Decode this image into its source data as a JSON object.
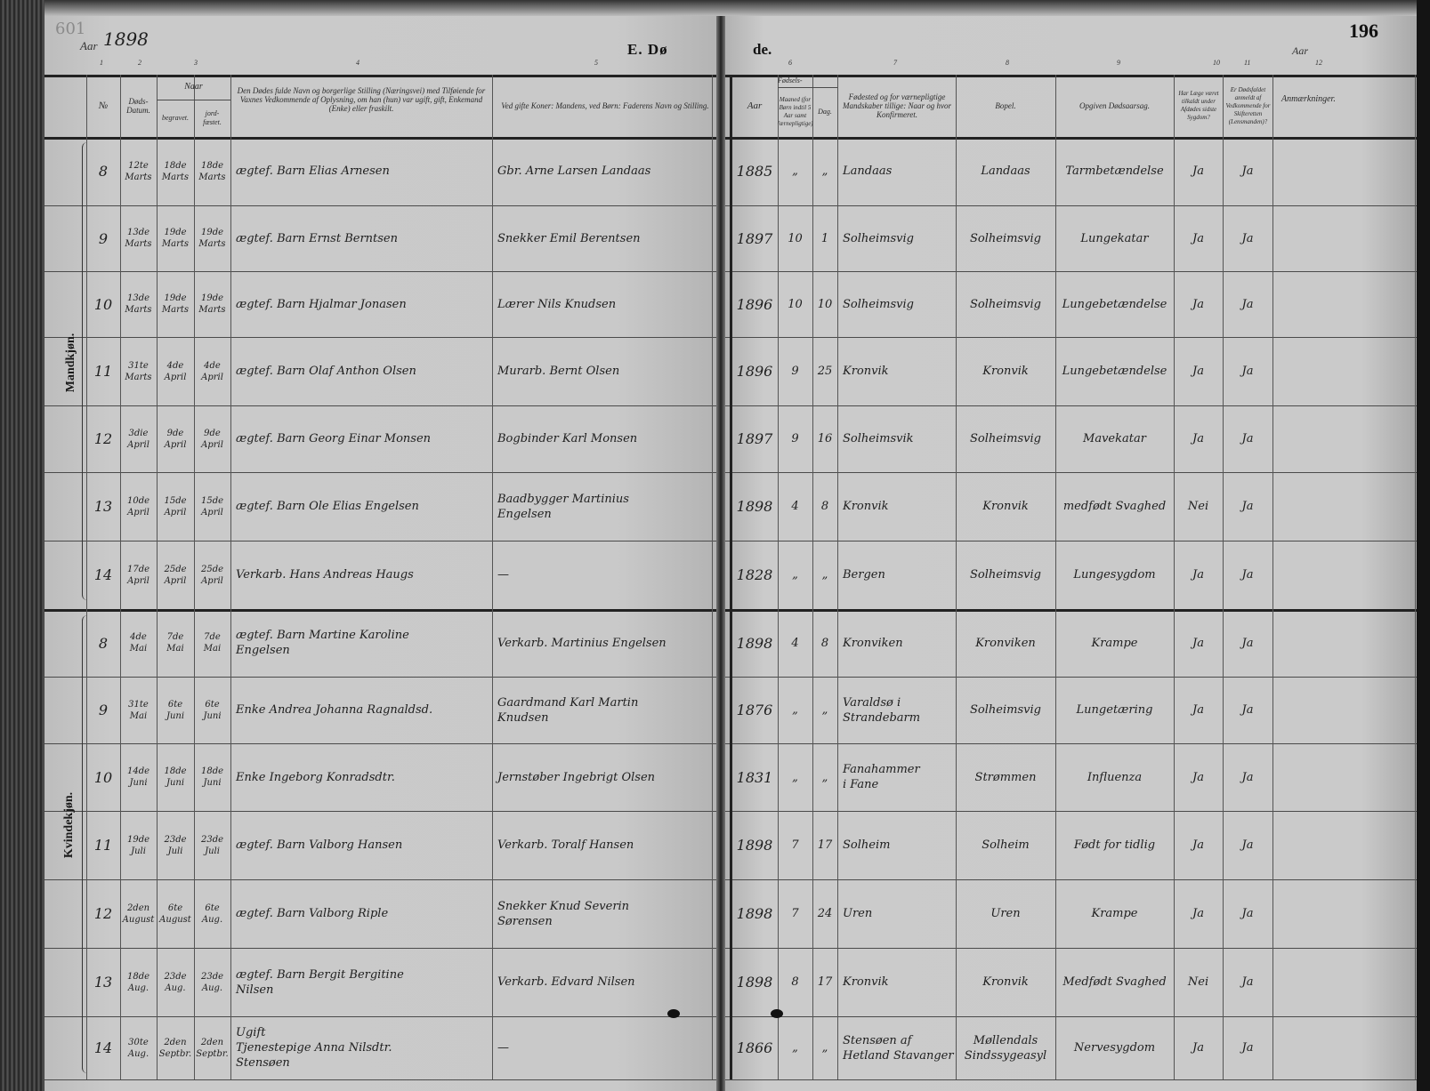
{
  "document": {
    "pencil_number": "601",
    "year_label": "Aar",
    "year": "1898",
    "title_left": "E. Dø",
    "title_right": "de.",
    "page_number": "196",
    "right_year_label": "Aar",
    "column_numbers": [
      "1",
      "2",
      "3",
      "4",
      "5",
      "6",
      "7",
      "8",
      "9",
      "10",
      "11",
      "12"
    ]
  },
  "header": {
    "nr": "№",
    "dods_datum": "Døds-\nDatum.",
    "naar": "Naar",
    "begravet": "begravet.",
    "jordfaestet": "jord-\nfæstet.",
    "name": "Den Dødes fulde Navn og borgerlige Stilling (Næringsvei) med Tilføiende for Vaxnes Vedkommende af Oplysning, om han (hun) var ugift, gift, Enkemand (Enke) eller fraskilt.",
    "father": "Ved gifte Koner: Mandens, ved Børn: Faderens Navn og Stilling.",
    "aar": "Aar",
    "fodsels": "Fødsels-",
    "maaned": "Maaned (for Børn indtil 5 Aar samt Værnepligtige).",
    "dag": "Dag.",
    "fodested": "Fødested og for værnepligtige Mandskaber tillige: Naar og hvor Konfirmeret.",
    "bopel": "Bopel.",
    "dodsaarsag": "Opgiven Dødsaarsag.",
    "laege": "Har Læge været tilkaldt under Afdødes sidste Sygdom?",
    "skifte": "Er Dødsfaldet anmeldt af Vedkommende for Skifteretten (Lensmanden)?",
    "anm": "Anmærkninger."
  },
  "sections": {
    "male": "Mandkjøn.",
    "female": "Kvindekjøn."
  },
  "rows": [
    {
      "nr": "8",
      "dod": "12te\nMarts",
      "begr": "18de\nMarts",
      "jord": "18de\nMarts",
      "name": "ægtef. Barn Elias Arnesen",
      "father": "Gbr. Arne Larsen Landaas",
      "aar": "1885",
      "maaned": "„",
      "dag": "„",
      "fodested": "Landaas",
      "bopel": "Landaas",
      "aarsag": "Tarmbetændelse",
      "laege": "Ja",
      "skifte": "Ja"
    },
    {
      "nr": "9",
      "dod": "13de\nMarts",
      "begr": "19de\nMarts",
      "jord": "19de\nMarts",
      "name": "ægtef. Barn Ernst Berntsen",
      "father": "Snekker Emil Berentsen",
      "aar": "1897",
      "maaned": "10",
      "dag": "1",
      "fodested": "Solheimsvig",
      "bopel": "Solheimsvig",
      "aarsag": "Lungekatar",
      "laege": "Ja",
      "skifte": "Ja"
    },
    {
      "nr": "10",
      "dod": "13de\nMarts",
      "begr": "19de\nMarts",
      "jord": "19de\nMarts",
      "name": "ægtef. Barn Hjalmar Jonasen",
      "father": "Lærer Nils Knudsen",
      "aar": "1896",
      "maaned": "10",
      "dag": "10",
      "fodested": "Solheimsvig",
      "bopel": "Solheimsvig",
      "aarsag": "Lungebetændelse",
      "laege": "Ja",
      "skifte": "Ja"
    },
    {
      "nr": "11",
      "dod": "31te\nMarts",
      "begr": "4de\nApril",
      "jord": "4de\nApril",
      "name": "ægtef. Barn Olaf Anthon Olsen",
      "father": "Murarb. Bernt Olsen",
      "aar": "1896",
      "maaned": "9",
      "dag": "25",
      "fodested": "Kronvik",
      "bopel": "Kronvik",
      "aarsag": "Lungebetændelse",
      "laege": "Ja",
      "skifte": "Ja"
    },
    {
      "nr": "12",
      "dod": "3die\nApril",
      "begr": "9de\nApril",
      "jord": "9de\nApril",
      "name": "ægtef. Barn Georg Einar Monsen",
      "father": "Bogbinder Karl Monsen",
      "aar": "1897",
      "maaned": "9",
      "dag": "16",
      "fodested": "Solheimsvik",
      "bopel": "Solheimsvig",
      "aarsag": "Mavekatar",
      "laege": "Ja",
      "skifte": "Ja"
    },
    {
      "nr": "13",
      "dod": "10de\nApril",
      "begr": "15de\nApril",
      "jord": "15de\nApril",
      "name": "ægtef. Barn Ole Elias Engelsen",
      "father": "Baadbygger Martinius\nEngelsen",
      "aar": "1898",
      "maaned": "4",
      "dag": "8",
      "fodested": "Kronvik",
      "bopel": "Kronvik",
      "aarsag": "medfødt Svaghed",
      "laege": "Nei",
      "skifte": "Ja"
    },
    {
      "nr": "14",
      "dod": "17de\nApril",
      "begr": "25de\nApril",
      "jord": "25de\nApril",
      "name": "Verkarb. Hans Andreas Haugs",
      "father": "—",
      "aar": "1828",
      "maaned": "„",
      "dag": "„",
      "fodested": "Bergen",
      "bopel": "Solheimsvig",
      "aarsag": "Lungesygdom",
      "laege": "Ja",
      "skifte": "Ja"
    },
    {
      "nr": "8",
      "dod": "4de\nMai",
      "begr": "7de\nMai",
      "jord": "7de\nMai",
      "name": "ægtef. Barn Martine Karoline\nEngelsen",
      "father": "Verkarb. Martinius Engelsen",
      "aar": "1898",
      "maaned": "4",
      "dag": "8",
      "fodested": "Kronviken",
      "bopel": "Kronviken",
      "aarsag": "Krampe",
      "laege": "Ja",
      "skifte": "Ja"
    },
    {
      "nr": "9",
      "dod": "31te\nMai",
      "begr": "6te\nJuni",
      "jord": "6te\nJuni",
      "name": "Enke Andrea Johanna Ragnaldsd.",
      "father": "Gaardmand Karl Martin\nKnudsen",
      "aar": "1876",
      "maaned": "„",
      "dag": "„",
      "fodested": "Varaldsø i\nStrandebarm",
      "bopel": "Solheimsvig",
      "aarsag": "Lungetæring",
      "laege": "Ja",
      "skifte": "Ja"
    },
    {
      "nr": "10",
      "dod": "14de\nJuni",
      "begr": "18de\nJuni",
      "jord": "18de\nJuni",
      "name": "Enke Ingeborg Konradsdtr.",
      "father": "Jernstøber Ingebrigt Olsen",
      "aar": "1831",
      "maaned": "„",
      "dag": "„",
      "fodested": "Fanahammer\ni Fane",
      "bopel": "Strømmen",
      "aarsag": "Influenza",
      "laege": "Ja",
      "skifte": "Ja"
    },
    {
      "nr": "11",
      "dod": "19de\nJuli",
      "begr": "23de\nJuli",
      "jord": "23de\nJuli",
      "name": "ægtef. Barn Valborg Hansen",
      "father": "Verkarb. Toralf Hansen",
      "aar": "1898",
      "maaned": "7",
      "dag": "17",
      "fodested": "Solheim",
      "bopel": "Solheim",
      "aarsag": "Født for tidlig",
      "laege": "Ja",
      "skifte": "Ja"
    },
    {
      "nr": "12",
      "dod": "2den\nAugust",
      "begr": "6te\nAugust",
      "jord": "6te\nAug.",
      "name": "ægtef. Barn Valborg Riple",
      "father": "Snekker Knud Severin\nSørensen",
      "aar": "1898",
      "maaned": "7",
      "dag": "24",
      "fodested": "Uren",
      "bopel": "Uren",
      "aarsag": "Krampe",
      "laege": "Ja",
      "skifte": "Ja"
    },
    {
      "nr": "13",
      "dod": "18de\nAug.",
      "begr": "23de\nAug.",
      "jord": "23de\nAug.",
      "name": "ægtef. Barn Bergit Bergitine\nNilsen",
      "father": "Verkarb. Edvard Nilsen",
      "aar": "1898",
      "maaned": "8",
      "dag": "17",
      "fodested": "Kronvik",
      "bopel": "Kronvik",
      "aarsag": "Medfødt Svaghed",
      "laege": "Nei",
      "skifte": "Ja"
    },
    {
      "nr": "14",
      "dod": "30te\nAug.",
      "begr": "2den\nSeptbr.",
      "jord": "2den\nSeptbr.",
      "name": "Ugift\nTjenestepige Anna Nilsdtr.\nStensøen",
      "father": "—",
      "aar": "1866",
      "maaned": "„",
      "dag": "„",
      "fodested": "Stensøen af\nHetland Stavanger",
      "bopel": "Møllendals\nSindssygeasyl",
      "aarsag": "Nervesygdom",
      "laege": "Ja",
      "skifte": "Ja"
    }
  ]
}
